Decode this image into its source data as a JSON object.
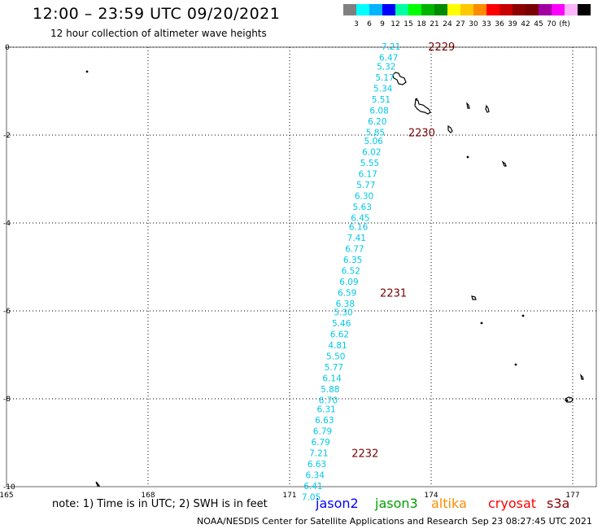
{
  "header": {
    "title": "12:00 – 23:59 UTC 09/20/2021",
    "subtitle": "12 hour collection of altimeter wave heights"
  },
  "colorbar": {
    "colors": [
      "#808080",
      "#00ffff",
      "#00b4ff",
      "#0000ff",
      "#00ffa0",
      "#00ff00",
      "#00b400",
      "#008c00",
      "#ffff00",
      "#ffc800",
      "#ff8c00",
      "#ff0000",
      "#c80000",
      "#8c0000",
      "#780000",
      "#a000a0",
      "#ff00ff",
      "#ffb4ff",
      "#000000"
    ],
    "labels": [
      "3",
      "6",
      "9",
      "12",
      "15",
      "18",
      "21",
      "24",
      "27",
      "30",
      "33",
      "36",
      "39",
      "42",
      "45",
      "70",
      "(ft)"
    ]
  },
  "map": {
    "lon_range": [
      165,
      177.5
    ],
    "lat_range": [
      -10,
      0
    ],
    "x_ticks": [
      "165",
      "168",
      "171",
      "174",
      "177"
    ],
    "y_ticks": [
      "0",
      "-2",
      "-4",
      "-6",
      "-8",
      "-10"
    ],
    "grid": true,
    "track_color": "#00c8e6",
    "time_label_color": "#780000"
  },
  "track": {
    "points": [
      {
        "lon": 173.35,
        "lat": 0.0,
        "v": "7.21"
      },
      {
        "lon": 173.3,
        "lat": -0.25,
        "v": "6.47"
      },
      {
        "lon": 173.25,
        "lat": -0.45,
        "v": "5.32"
      },
      {
        "lon": 173.22,
        "lat": -0.7,
        "v": "5.17"
      },
      {
        "lon": 173.18,
        "lat": -0.95,
        "v": "5.34"
      },
      {
        "lon": 173.14,
        "lat": -1.2,
        "v": "5.51"
      },
      {
        "lon": 173.1,
        "lat": -1.45,
        "v": "6.08"
      },
      {
        "lon": 173.06,
        "lat": -1.7,
        "v": "6.20"
      },
      {
        "lon": 173.02,
        "lat": -1.95,
        "v": "5.85"
      },
      {
        "lon": 172.98,
        "lat": -2.15,
        "v": "5.06"
      },
      {
        "lon": 172.94,
        "lat": -2.4,
        "v": "6.02"
      },
      {
        "lon": 172.9,
        "lat": -2.65,
        "v": "5.55"
      },
      {
        "lon": 172.86,
        "lat": -2.9,
        "v": "6.17"
      },
      {
        "lon": 172.82,
        "lat": -3.15,
        "v": "5.77"
      },
      {
        "lon": 172.78,
        "lat": -3.4,
        "v": "6.30"
      },
      {
        "lon": 172.74,
        "lat": -3.65,
        "v": "5.63"
      },
      {
        "lon": 172.7,
        "lat": -3.9,
        "v": "6.45"
      },
      {
        "lon": 172.66,
        "lat": -4.1,
        "v": "6.16"
      },
      {
        "lon": 172.62,
        "lat": -4.35,
        "v": "7.41"
      },
      {
        "lon": 172.58,
        "lat": -4.6,
        "v": "6.77"
      },
      {
        "lon": 172.54,
        "lat": -4.85,
        "v": "6.35"
      },
      {
        "lon": 172.5,
        "lat": -5.1,
        "v": "6.52"
      },
      {
        "lon": 172.46,
        "lat": -5.35,
        "v": "6.09"
      },
      {
        "lon": 172.42,
        "lat": -5.6,
        "v": "6.59"
      },
      {
        "lon": 172.38,
        "lat": -5.85,
        "v": "6.38"
      },
      {
        "lon": 172.34,
        "lat": -6.05,
        "v": "5.30"
      },
      {
        "lon": 172.3,
        "lat": -6.3,
        "v": "5.46"
      },
      {
        "lon": 172.26,
        "lat": -6.55,
        "v": "6.62"
      },
      {
        "lon": 172.22,
        "lat": -6.8,
        "v": "4.81"
      },
      {
        "lon": 172.18,
        "lat": -7.05,
        "v": "5.50"
      },
      {
        "lon": 172.14,
        "lat": -7.3,
        "v": "5.77"
      },
      {
        "lon": 172.1,
        "lat": -7.55,
        "v": "6.14"
      },
      {
        "lon": 172.06,
        "lat": -7.8,
        "v": "5.88"
      },
      {
        "lon": 172.02,
        "lat": -8.05,
        "v": "6.70"
      },
      {
        "lon": 171.98,
        "lat": -8.25,
        "v": "6.31"
      },
      {
        "lon": 171.94,
        "lat": -8.5,
        "v": "6.63"
      },
      {
        "lon": 171.9,
        "lat": -8.75,
        "v": "6.79"
      },
      {
        "lon": 171.86,
        "lat": -9.0,
        "v": "6.79"
      },
      {
        "lon": 171.82,
        "lat": -9.25,
        "v": "7.21"
      },
      {
        "lon": 171.78,
        "lat": -9.5,
        "v": "6.63"
      },
      {
        "lon": 171.74,
        "lat": -9.75,
        "v": "6.34"
      },
      {
        "lon": 171.7,
        "lat": -10.0,
        "v": "6.41"
      },
      {
        "lon": 171.66,
        "lat": -10.25,
        "v": "7.05"
      }
    ],
    "time_labels": [
      {
        "lon": 174.22,
        "lat": 0.0,
        "t": "2229"
      },
      {
        "lon": 173.8,
        "lat": -1.95,
        "t": "2230"
      },
      {
        "lon": 173.2,
        "lat": -5.6,
        "t": "2231"
      },
      {
        "lon": 172.6,
        "lat": -9.25,
        "t": "2232"
      }
    ]
  },
  "footer": {
    "note": "note: 1) Time is in UTC; 2) SWH is in feet",
    "satellites": [
      {
        "name": "jason2",
        "color": "#0000ff"
      },
      {
        "name": "jason3",
        "color": "#00a000"
      },
      {
        "name": "altika",
        "color": "#ff8c00"
      },
      {
        "name": "cryosat",
        "color": "#ff0000"
      },
      {
        "name": "s3a",
        "color": "#8c0000"
      }
    ],
    "credit": "NOAA/NESDIS Center for Satellite Applications and Research",
    "timestamp": "Sep 23 08:27:45 UTC 2021"
  }
}
